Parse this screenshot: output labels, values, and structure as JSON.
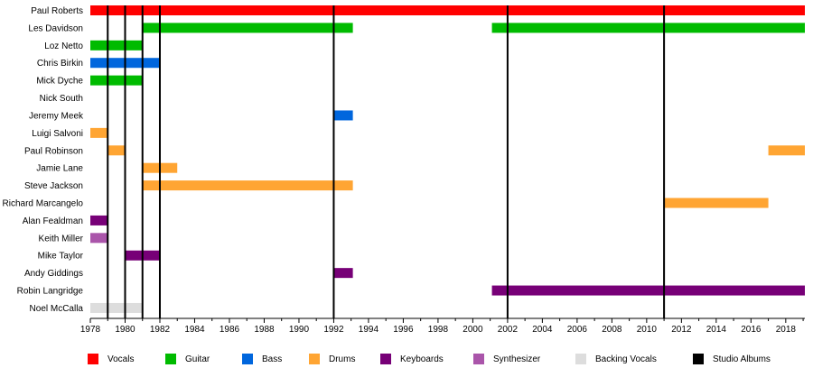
{
  "chart_data": {
    "type": "timeline",
    "x_range": [
      1978,
      2019.1
    ],
    "x_ticks": [
      1978,
      1980,
      1982,
      1984,
      1986,
      1988,
      1990,
      1992,
      1994,
      1996,
      1998,
      2000,
      2002,
      2004,
      2006,
      2008,
      2010,
      2012,
      2014,
      2016,
      2018
    ],
    "members": [
      "Paul Roberts",
      "Les Davidson",
      "Loz Netto",
      "Chris Birkin",
      "Mick Dyche",
      "Nick South",
      "Jeremy Meek",
      "Luigi Salvoni",
      "Paul Robinson",
      "Jamie Lane",
      "Steve Jackson",
      "Richard Marcangelo",
      "Alan Fealdman",
      "Keith Miller",
      "Mike Taylor",
      "Andy Giddings",
      "Robin Langridge",
      "Noel McCalla"
    ],
    "roles": [
      {
        "name": "Vocals",
        "color": "#ff0000"
      },
      {
        "name": "Guitar",
        "color": "#00bb00"
      },
      {
        "name": "Bass",
        "color": "#0066dd"
      },
      {
        "name": "Drums",
        "color": "#ffa533"
      },
      {
        "name": "Keyboards",
        "color": "#770077"
      },
      {
        "name": "Synthesizer",
        "color": "#aa55aa"
      },
      {
        "name": "Backing Vocals",
        "color": "#dddddd"
      },
      {
        "name": "Studio Albums",
        "color": "#000000"
      }
    ],
    "bars": [
      {
        "member": 0,
        "role": "Vocals",
        "start": 1978,
        "end": 2019.1
      },
      {
        "member": 1,
        "role": "Guitar",
        "start": 1981,
        "end": 1993.1
      },
      {
        "member": 1,
        "role": "Guitar",
        "start": 2001.1,
        "end": 2019.1
      },
      {
        "member": 2,
        "role": "Guitar",
        "start": 1978,
        "end": 1981
      },
      {
        "member": 3,
        "role": "Bass",
        "start": 1978,
        "end": 1982
      },
      {
        "member": 4,
        "role": "Guitar",
        "start": 1978,
        "end": 1981
      },
      {
        "member": 6,
        "role": "Bass",
        "start": 1992,
        "end": 1993.1
      },
      {
        "member": 7,
        "role": "Drums",
        "start": 1978,
        "end": 1979
      },
      {
        "member": 8,
        "role": "Drums",
        "start": 1979,
        "end": 1980
      },
      {
        "member": 8,
        "role": "Drums",
        "start": 2017,
        "end": 2019.1
      },
      {
        "member": 9,
        "role": "Drums",
        "start": 1981,
        "end": 1983
      },
      {
        "member": 10,
        "role": "Drums",
        "start": 1981,
        "end": 1993.1
      },
      {
        "member": 11,
        "role": "Drums",
        "start": 2011,
        "end": 2017
      },
      {
        "member": 12,
        "role": "Keyboards",
        "start": 1978,
        "end": 1979
      },
      {
        "member": 13,
        "role": "Synthesizer",
        "start": 1978,
        "end": 1979
      },
      {
        "member": 14,
        "role": "Keyboards",
        "start": 1980,
        "end": 1982
      },
      {
        "member": 15,
        "role": "Keyboards",
        "start": 1992,
        "end": 1993.1
      },
      {
        "member": 16,
        "role": "Keyboards",
        "start": 2001.1,
        "end": 2019.1
      },
      {
        "member": 17,
        "role": "Backing Vocals",
        "start": 1978,
        "end": 1981
      }
    ],
    "studio_albums": [
      1979,
      1980,
      1981,
      1982,
      1992,
      2002,
      2011
    ]
  }
}
